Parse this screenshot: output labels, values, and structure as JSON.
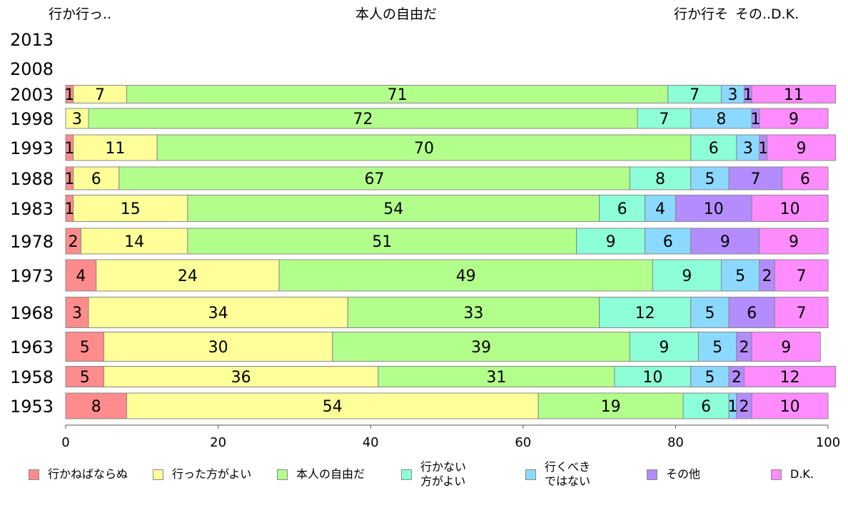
{
  "chart_data": {
    "type": "bar",
    "orientation": "horizontal-stacked",
    "top_labels": [
      "行か行っ..",
      "本人の自由だ",
      "行か行そ",
      "その..",
      "D.K."
    ],
    "categories": [
      "2013",
      "2008",
      "2003",
      "1998",
      "1993",
      "1988",
      "1983",
      "1978",
      "1973",
      "1968",
      "1963",
      "1958",
      "1953"
    ],
    "xlim": [
      0,
      100
    ],
    "x_ticks": [
      "0",
      "20",
      "40",
      "60",
      "80",
      "100"
    ],
    "grid": false,
    "legend_position": "bottom",
    "series": [
      {
        "name": "行かねばならぬ",
        "color": "#ff8c8c",
        "values": [
          null,
          null,
          1,
          null,
          1,
          1,
          1,
          2,
          4,
          3,
          5,
          5,
          8
        ]
      },
      {
        "name": "行った方がよい",
        "color": "#ffff99",
        "values": [
          null,
          null,
          7,
          3,
          11,
          6,
          15,
          14,
          24,
          34,
          30,
          36,
          54
        ]
      },
      {
        "name": "本人の自由だ",
        "color": "#b3ff8c",
        "values": [
          null,
          null,
          71,
          72,
          70,
          67,
          54,
          51,
          49,
          33,
          39,
          31,
          19
        ]
      },
      {
        "name": "行かない\n方がよい",
        "color": "#8cffd9",
        "values": [
          null,
          null,
          7,
          7,
          6,
          8,
          6,
          9,
          9,
          12,
          9,
          10,
          6
        ]
      },
      {
        "name": "行くべき\nではない",
        "color": "#8cd9ff",
        "values": [
          null,
          null,
          3,
          8,
          3,
          5,
          4,
          6,
          5,
          5,
          5,
          5,
          1
        ]
      },
      {
        "name": "その他",
        "color": "#b38cff",
        "values": [
          null,
          null,
          1,
          1,
          1,
          7,
          10,
          9,
          2,
          6,
          2,
          2,
          2
        ]
      },
      {
        "name": "D.K.",
        "color": "#ff8cff",
        "values": [
          null,
          null,
          11,
          9,
          9,
          6,
          10,
          9,
          7,
          7,
          9,
          12,
          10
        ]
      }
    ]
  }
}
